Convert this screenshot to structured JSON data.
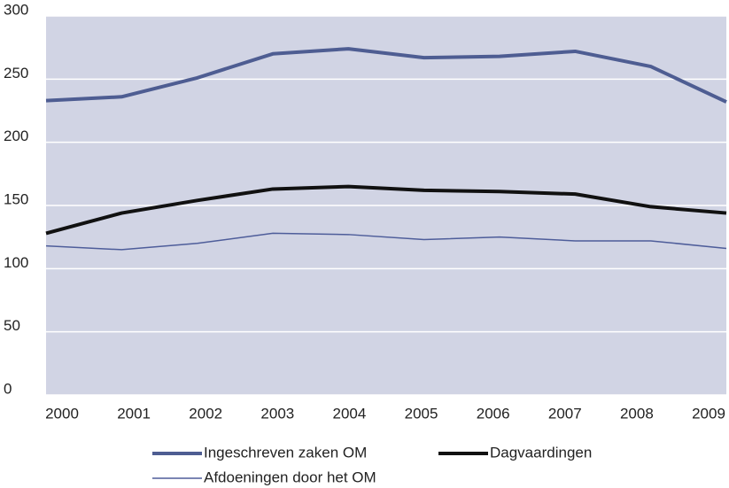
{
  "chart_data": {
    "type": "line",
    "categories": [
      "2000",
      "2001",
      "2002",
      "2003",
      "2004",
      "2005",
      "2006",
      "2007",
      "2008",
      "2009"
    ],
    "series": [
      {
        "name": "Ingeschreven zaken OM",
        "color": "#4e5d92",
        "width": 4,
        "values": [
          233,
          236,
          251,
          270,
          274,
          267,
          268,
          272,
          260,
          232
        ]
      },
      {
        "name": "Dagvaardingen",
        "color": "#111111",
        "width": 4,
        "values": [
          128,
          144,
          154,
          163,
          165,
          162,
          161,
          159,
          149,
          144
        ]
      },
      {
        "name": "Afdoeningen door het OM",
        "color": "#4e5d9a",
        "width": 1.5,
        "values": [
          118,
          115,
          120,
          128,
          127,
          123,
          125,
          122,
          122,
          116
        ]
      }
    ],
    "ylim": [
      0,
      300
    ],
    "yticks": [
      0,
      50,
      100,
      150,
      200,
      250,
      300
    ],
    "grid": true
  }
}
